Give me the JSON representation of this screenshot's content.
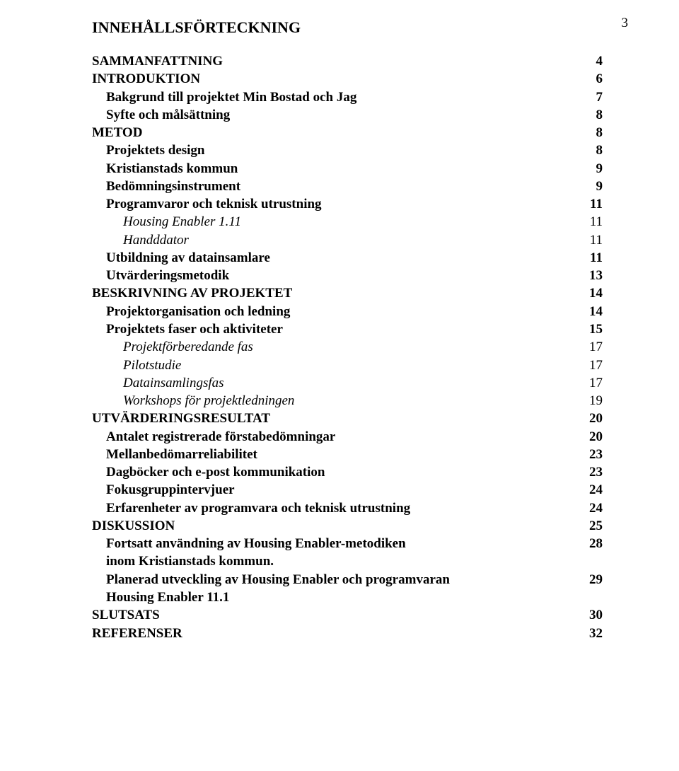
{
  "pageNumber": "3",
  "heading": "INNEHÅLLSFÖRTECKNING",
  "entries": [
    {
      "label": "SAMMANFATTNING",
      "num": "4",
      "style": "bold"
    },
    {
      "label": "INTRODUKTION",
      "num": "6",
      "style": "bold"
    },
    {
      "label": "Bakgrund till projektet Min Bostad och Jag",
      "num": "7",
      "style": "bold ind1"
    },
    {
      "label": "Syfte och målsättning",
      "num": "8",
      "style": "bold ind1"
    },
    {
      "label": "METOD",
      "num": "8",
      "style": "bold"
    },
    {
      "label": "Projektets design",
      "num": "8",
      "style": "bold ind1"
    },
    {
      "label": "Kristianstads kommun",
      "num": "9",
      "style": "bold ind1"
    },
    {
      "label": "Bedömningsinstrument",
      "num": "9",
      "style": "bold ind1"
    },
    {
      "label": "Programvaror och teknisk utrustning",
      "num": "11",
      "style": "bold ind1"
    },
    {
      "label": "Housing Enabler 1.11",
      "num": "11",
      "style": "italic ind2"
    },
    {
      "label": "Handddator",
      "num": "11",
      "style": "italic ind2"
    },
    {
      "label": "Utbildning av datainsamlare",
      "num": "11",
      "style": "bold ind1"
    },
    {
      "label": "Utvärderingsmetodik",
      "num": "13",
      "style": "bold ind1"
    },
    {
      "label": "BESKRIVNING AV PROJEKTET",
      "num": "14",
      "style": "bold"
    },
    {
      "label": "Projektorganisation och ledning",
      "num": "14",
      "style": "bold ind1"
    },
    {
      "label": "Projektets faser och aktiviteter",
      "num": "15",
      "style": "bold ind1"
    },
    {
      "label": "Projektförberedande fas",
      "num": "17",
      "style": "italic ind2"
    },
    {
      "label": "Pilotstudie",
      "num": "17",
      "style": "italic ind2"
    },
    {
      "label": "Datainsamlingsfas",
      "num": "17",
      "style": "italic ind2"
    },
    {
      "label": "Workshops för projektledningen",
      "num": "19",
      "style": "italic ind2"
    },
    {
      "label": "UTVÄRDERINGSRESULTAT",
      "num": "20",
      "style": "bold"
    },
    {
      "label": "Antalet registrerade förstabedömningar",
      "num": "20",
      "style": "bold ind1"
    },
    {
      "label": "Mellanbedömarreliabilitet",
      "num": "23",
      "style": "bold ind1"
    },
    {
      "label": "Dagböcker och e-post kommunikation",
      "num": "23",
      "style": "bold ind1"
    },
    {
      "label": "Fokusgruppintervjuer",
      "num": "24",
      "style": "bold ind1"
    },
    {
      "label": "Erfarenheter av programvara och teknisk utrustning",
      "num": "24",
      "style": "bold ind1"
    },
    {
      "label": "DISKUSSION",
      "num": "25",
      "style": "bold"
    },
    {
      "label": "Fortsatt användning av Housing Enabler-metodiken",
      "num": "28",
      "style": "bold ind1"
    },
    {
      "label": "inom Kristianstads kommun.",
      "num": "",
      "style": "bold ind1"
    },
    {
      "label": "Planerad utveckling av Housing Enabler och programvaran",
      "num": "29",
      "style": "bold ind1"
    },
    {
      "label": "Housing Enabler 11.1",
      "num": "",
      "style": "bold ind1"
    },
    {
      "label": "SLUTSATS",
      "num": "30",
      "style": "bold"
    },
    {
      "label": "REFERENSER",
      "num": "32",
      "style": "bold"
    }
  ]
}
